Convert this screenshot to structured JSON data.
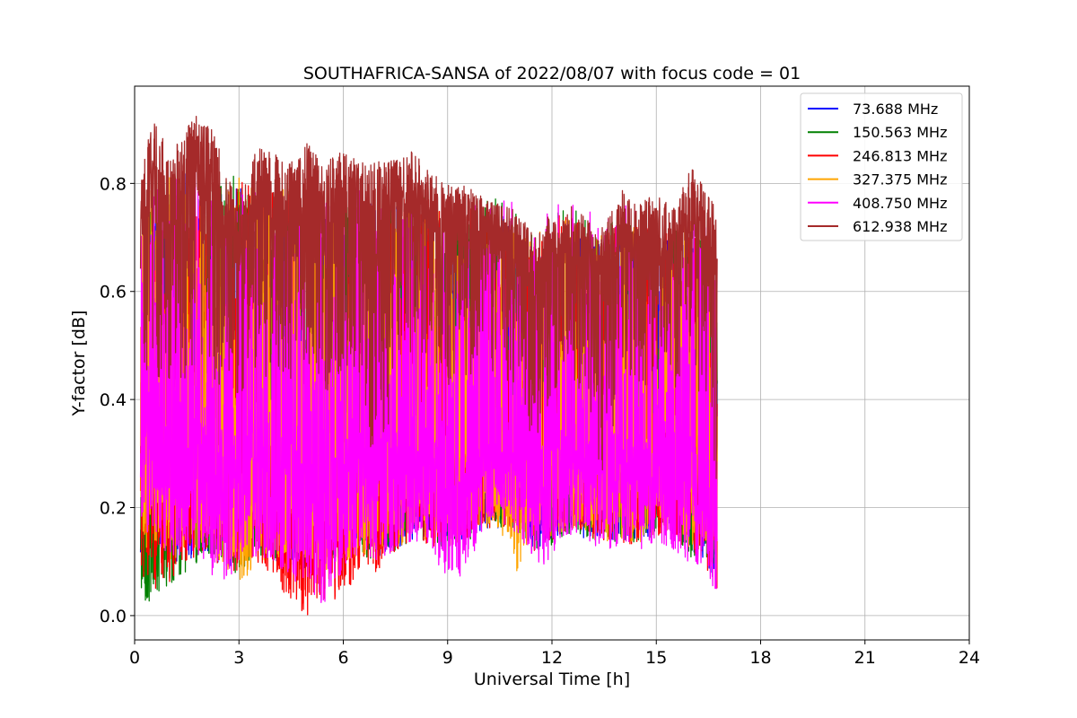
{
  "chart_data": {
    "type": "line",
    "title": "SOUTHAFRICA-SANSA of 2022/08/07 with focus code = 01",
    "xlabel": "Universal Time [h]",
    "ylabel": "Y-factor [dB]",
    "xlim": [
      0,
      24
    ],
    "ylim": [
      -0.045,
      0.98
    ],
    "xticks": [
      0,
      3,
      6,
      9,
      12,
      15,
      18,
      21,
      24
    ],
    "yticks": [
      0.0,
      0.2,
      0.4,
      0.6,
      0.8
    ],
    "ytick_labels": [
      "0.0",
      "0.2",
      "0.4",
      "0.6",
      "0.8"
    ],
    "grid": true,
    "legend_position": "top-right",
    "data_time_range_h": [
      0.17,
      16.75
    ],
    "series": [
      {
        "name": "73.688 MHz",
        "legend_label": " 73.688 MHz",
        "color": "#0000ff",
        "x": [
          0.17,
          0.6,
          1.0,
          1.5,
          2.0,
          2.5,
          3.0,
          3.5,
          4.0,
          4.5,
          5.0,
          5.5,
          6.0,
          6.5,
          7.0,
          7.5,
          8.0,
          8.5,
          9.0,
          9.5,
          10.0,
          10.5,
          11.0,
          11.5,
          12.0,
          12.5,
          13.0,
          13.5,
          14.0,
          14.5,
          15.0,
          15.5,
          16.0,
          16.5,
          16.75
        ],
        "low": [
          0.1,
          0.12,
          0.08,
          0.1,
          0.12,
          0.08,
          0.1,
          0.12,
          0.1,
          0.1,
          0.08,
          0.1,
          0.1,
          0.12,
          0.1,
          0.12,
          0.14,
          0.14,
          0.12,
          0.14,
          0.16,
          0.16,
          0.16,
          0.12,
          0.14,
          0.16,
          0.14,
          0.14,
          0.13,
          0.13,
          0.16,
          0.15,
          0.12,
          0.08,
          0.08
        ],
        "high": [
          0.74,
          0.78,
          0.8,
          0.82,
          0.8,
          0.78,
          0.8,
          0.79,
          0.78,
          0.78,
          0.77,
          0.77,
          0.77,
          0.78,
          0.76,
          0.76,
          0.78,
          0.76,
          0.72,
          0.74,
          0.73,
          0.75,
          0.72,
          0.68,
          0.7,
          0.73,
          0.72,
          0.7,
          0.72,
          0.72,
          0.71,
          0.7,
          0.72,
          0.7,
          0.66
        ]
      },
      {
        "name": "150.563 MHz",
        "legend_label": "150.563 MHz",
        "color": "#008000",
        "x": [
          0.17,
          0.6,
          1.0,
          1.5,
          2.0,
          2.5,
          3.0,
          3.5,
          4.0,
          4.5,
          5.0,
          5.5,
          6.0,
          6.5,
          7.0,
          7.5,
          8.0,
          8.5,
          9.0,
          9.5,
          10.0,
          10.5,
          11.0,
          11.5,
          12.0,
          12.5,
          13.0,
          13.5,
          14.0,
          14.5,
          15.0,
          15.5,
          16.0,
          16.5,
          16.75
        ],
        "low": [
          0.03,
          0.01,
          0.06,
          0.06,
          0.12,
          0.1,
          0.07,
          0.11,
          0.1,
          0.09,
          0.1,
          0.08,
          0.11,
          0.11,
          0.1,
          0.12,
          0.14,
          0.14,
          0.12,
          0.13,
          0.16,
          0.16,
          0.16,
          0.12,
          0.13,
          0.15,
          0.14,
          0.14,
          0.13,
          0.13,
          0.15,
          0.15,
          0.1,
          0.09,
          0.08
        ],
        "high": [
          0.76,
          0.8,
          0.82,
          0.84,
          0.82,
          0.8,
          0.82,
          0.8,
          0.8,
          0.8,
          0.78,
          0.78,
          0.78,
          0.8,
          0.78,
          0.78,
          0.8,
          0.77,
          0.74,
          0.76,
          0.78,
          0.79,
          0.74,
          0.7,
          0.74,
          0.76,
          0.74,
          0.72,
          0.74,
          0.74,
          0.72,
          0.72,
          0.74,
          0.72,
          0.68
        ]
      },
      {
        "name": "246.813 MHz",
        "legend_label": "246.813 MHz",
        "color": "#ff0000",
        "x": [
          0.17,
          0.6,
          1.0,
          1.5,
          2.0,
          2.5,
          3.0,
          3.5,
          4.0,
          4.5,
          5.0,
          5.5,
          6.0,
          6.5,
          7.0,
          7.5,
          8.0,
          8.5,
          9.0,
          9.5,
          10.0,
          10.5,
          11.0,
          11.5,
          12.0,
          12.5,
          13.0,
          13.5,
          14.0,
          14.5,
          15.0,
          15.5,
          16.0,
          16.5,
          16.75
        ],
        "low": [
          0.08,
          0.04,
          0.06,
          0.1,
          0.11,
          0.09,
          0.08,
          0.1,
          0.07,
          0.02,
          0.0,
          0.03,
          0.03,
          0.09,
          0.08,
          0.12,
          0.14,
          0.13,
          0.12,
          0.14,
          0.16,
          0.16,
          0.16,
          0.12,
          0.14,
          0.16,
          0.14,
          0.14,
          0.13,
          0.13,
          0.15,
          0.14,
          0.12,
          0.08,
          0.05
        ],
        "high": [
          0.75,
          0.79,
          0.81,
          0.83,
          0.81,
          0.79,
          0.81,
          0.8,
          0.79,
          0.79,
          0.78,
          0.78,
          0.78,
          0.79,
          0.77,
          0.77,
          0.79,
          0.77,
          0.73,
          0.75,
          0.76,
          0.77,
          0.73,
          0.69,
          0.74,
          0.75,
          0.73,
          0.71,
          0.73,
          0.73,
          0.71,
          0.71,
          0.73,
          0.71,
          0.67
        ]
      },
      {
        "name": "327.375 MHz",
        "legend_label": "327.375 MHz",
        "color": "#ffa500",
        "x": [
          0.17,
          0.6,
          1.0,
          1.5,
          2.0,
          2.5,
          3.0,
          3.5,
          4.0,
          4.5,
          5.0,
          5.5,
          6.0,
          6.5,
          7.0,
          7.5,
          8.0,
          8.5,
          9.0,
          9.5,
          10.0,
          10.5,
          11.0,
          11.5,
          12.0,
          12.5,
          13.0,
          13.5,
          14.0,
          14.5,
          15.0,
          15.5,
          16.0,
          16.5,
          16.75
        ],
        "low": [
          0.1,
          0.12,
          0.1,
          0.12,
          0.12,
          0.1,
          0.05,
          0.1,
          0.1,
          0.1,
          0.1,
          0.08,
          0.1,
          0.11,
          0.1,
          0.12,
          0.14,
          0.14,
          0.12,
          0.14,
          0.16,
          0.16,
          0.08,
          0.12,
          0.14,
          0.16,
          0.14,
          0.14,
          0.13,
          0.13,
          0.16,
          0.15,
          0.12,
          0.1,
          0.03
        ],
        "high": [
          0.76,
          0.8,
          0.82,
          0.84,
          0.82,
          0.8,
          0.82,
          0.81,
          0.8,
          0.8,
          0.79,
          0.79,
          0.79,
          0.8,
          0.78,
          0.78,
          0.8,
          0.78,
          0.74,
          0.76,
          0.76,
          0.77,
          0.74,
          0.7,
          0.74,
          0.76,
          0.74,
          0.72,
          0.74,
          0.74,
          0.72,
          0.72,
          0.74,
          0.72,
          0.68
        ]
      },
      {
        "name": "408.750 MHz",
        "legend_label": "408.750 MHz",
        "color": "#ff00ff",
        "x": [
          0.17,
          0.6,
          1.0,
          1.5,
          2.0,
          2.5,
          3.0,
          3.5,
          4.0,
          4.5,
          5.0,
          5.5,
          6.0,
          6.5,
          7.0,
          7.5,
          8.0,
          8.5,
          9.0,
          9.5,
          10.0,
          10.5,
          11.0,
          11.5,
          12.0,
          12.5,
          13.0,
          13.5,
          14.0,
          14.5,
          15.0,
          15.5,
          16.0,
          16.5,
          16.75
        ],
        "low": [
          0.12,
          0.14,
          0.1,
          0.12,
          0.1,
          0.04,
          0.1,
          0.11,
          0.1,
          0.07,
          0.03,
          0.0,
          0.08,
          0.12,
          0.1,
          0.12,
          0.14,
          0.13,
          0.05,
          0.08,
          0.15,
          0.16,
          0.15,
          0.09,
          0.1,
          0.15,
          0.13,
          0.12,
          0.12,
          0.12,
          0.13,
          0.12,
          0.09,
          0.06,
          0.03
        ],
        "high": [
          0.77,
          0.8,
          0.82,
          0.84,
          0.82,
          0.8,
          0.82,
          0.81,
          0.8,
          0.8,
          0.79,
          0.79,
          0.79,
          0.8,
          0.78,
          0.78,
          0.8,
          0.78,
          0.74,
          0.76,
          0.77,
          0.78,
          0.76,
          0.71,
          0.8,
          0.77,
          0.76,
          0.73,
          0.78,
          0.75,
          0.73,
          0.74,
          0.76,
          0.73,
          0.68
        ]
      },
      {
        "name": "612.938 MHz",
        "legend_label": "612.938 MHz",
        "color": "#a52a2a",
        "x": [
          0.17,
          0.6,
          1.0,
          1.5,
          2.0,
          2.5,
          3.0,
          3.5,
          4.0,
          4.5,
          5.0,
          5.5,
          6.0,
          6.5,
          7.0,
          7.5,
          8.0,
          8.5,
          9.0,
          9.5,
          10.0,
          10.5,
          11.0,
          11.5,
          12.0,
          12.5,
          13.0,
          13.5,
          14.0,
          14.5,
          15.0,
          15.5,
          16.0,
          16.5,
          16.75
        ],
        "low": [
          0.32,
          0.28,
          0.26,
          0.28,
          0.3,
          0.24,
          0.26,
          0.28,
          0.3,
          0.3,
          0.28,
          0.26,
          0.3,
          0.3,
          0.0,
          0.32,
          0.34,
          0.36,
          0.3,
          0.32,
          0.34,
          0.34,
          0.3,
          0.16,
          0.3,
          0.32,
          0.3,
          0.07,
          0.3,
          0.32,
          0.3,
          0.3,
          0.3,
          0.26,
          0.05
        ],
        "high": [
          0.84,
          0.92,
          0.85,
          0.92,
          0.93,
          0.86,
          0.76,
          0.87,
          0.86,
          0.84,
          0.88,
          0.84,
          0.86,
          0.84,
          0.84,
          0.85,
          0.86,
          0.82,
          0.8,
          0.8,
          0.78,
          0.76,
          0.75,
          0.7,
          0.75,
          0.76,
          0.74,
          0.72,
          0.79,
          0.76,
          0.79,
          0.76,
          0.83,
          0.79,
          0.74
        ]
      }
    ]
  }
}
